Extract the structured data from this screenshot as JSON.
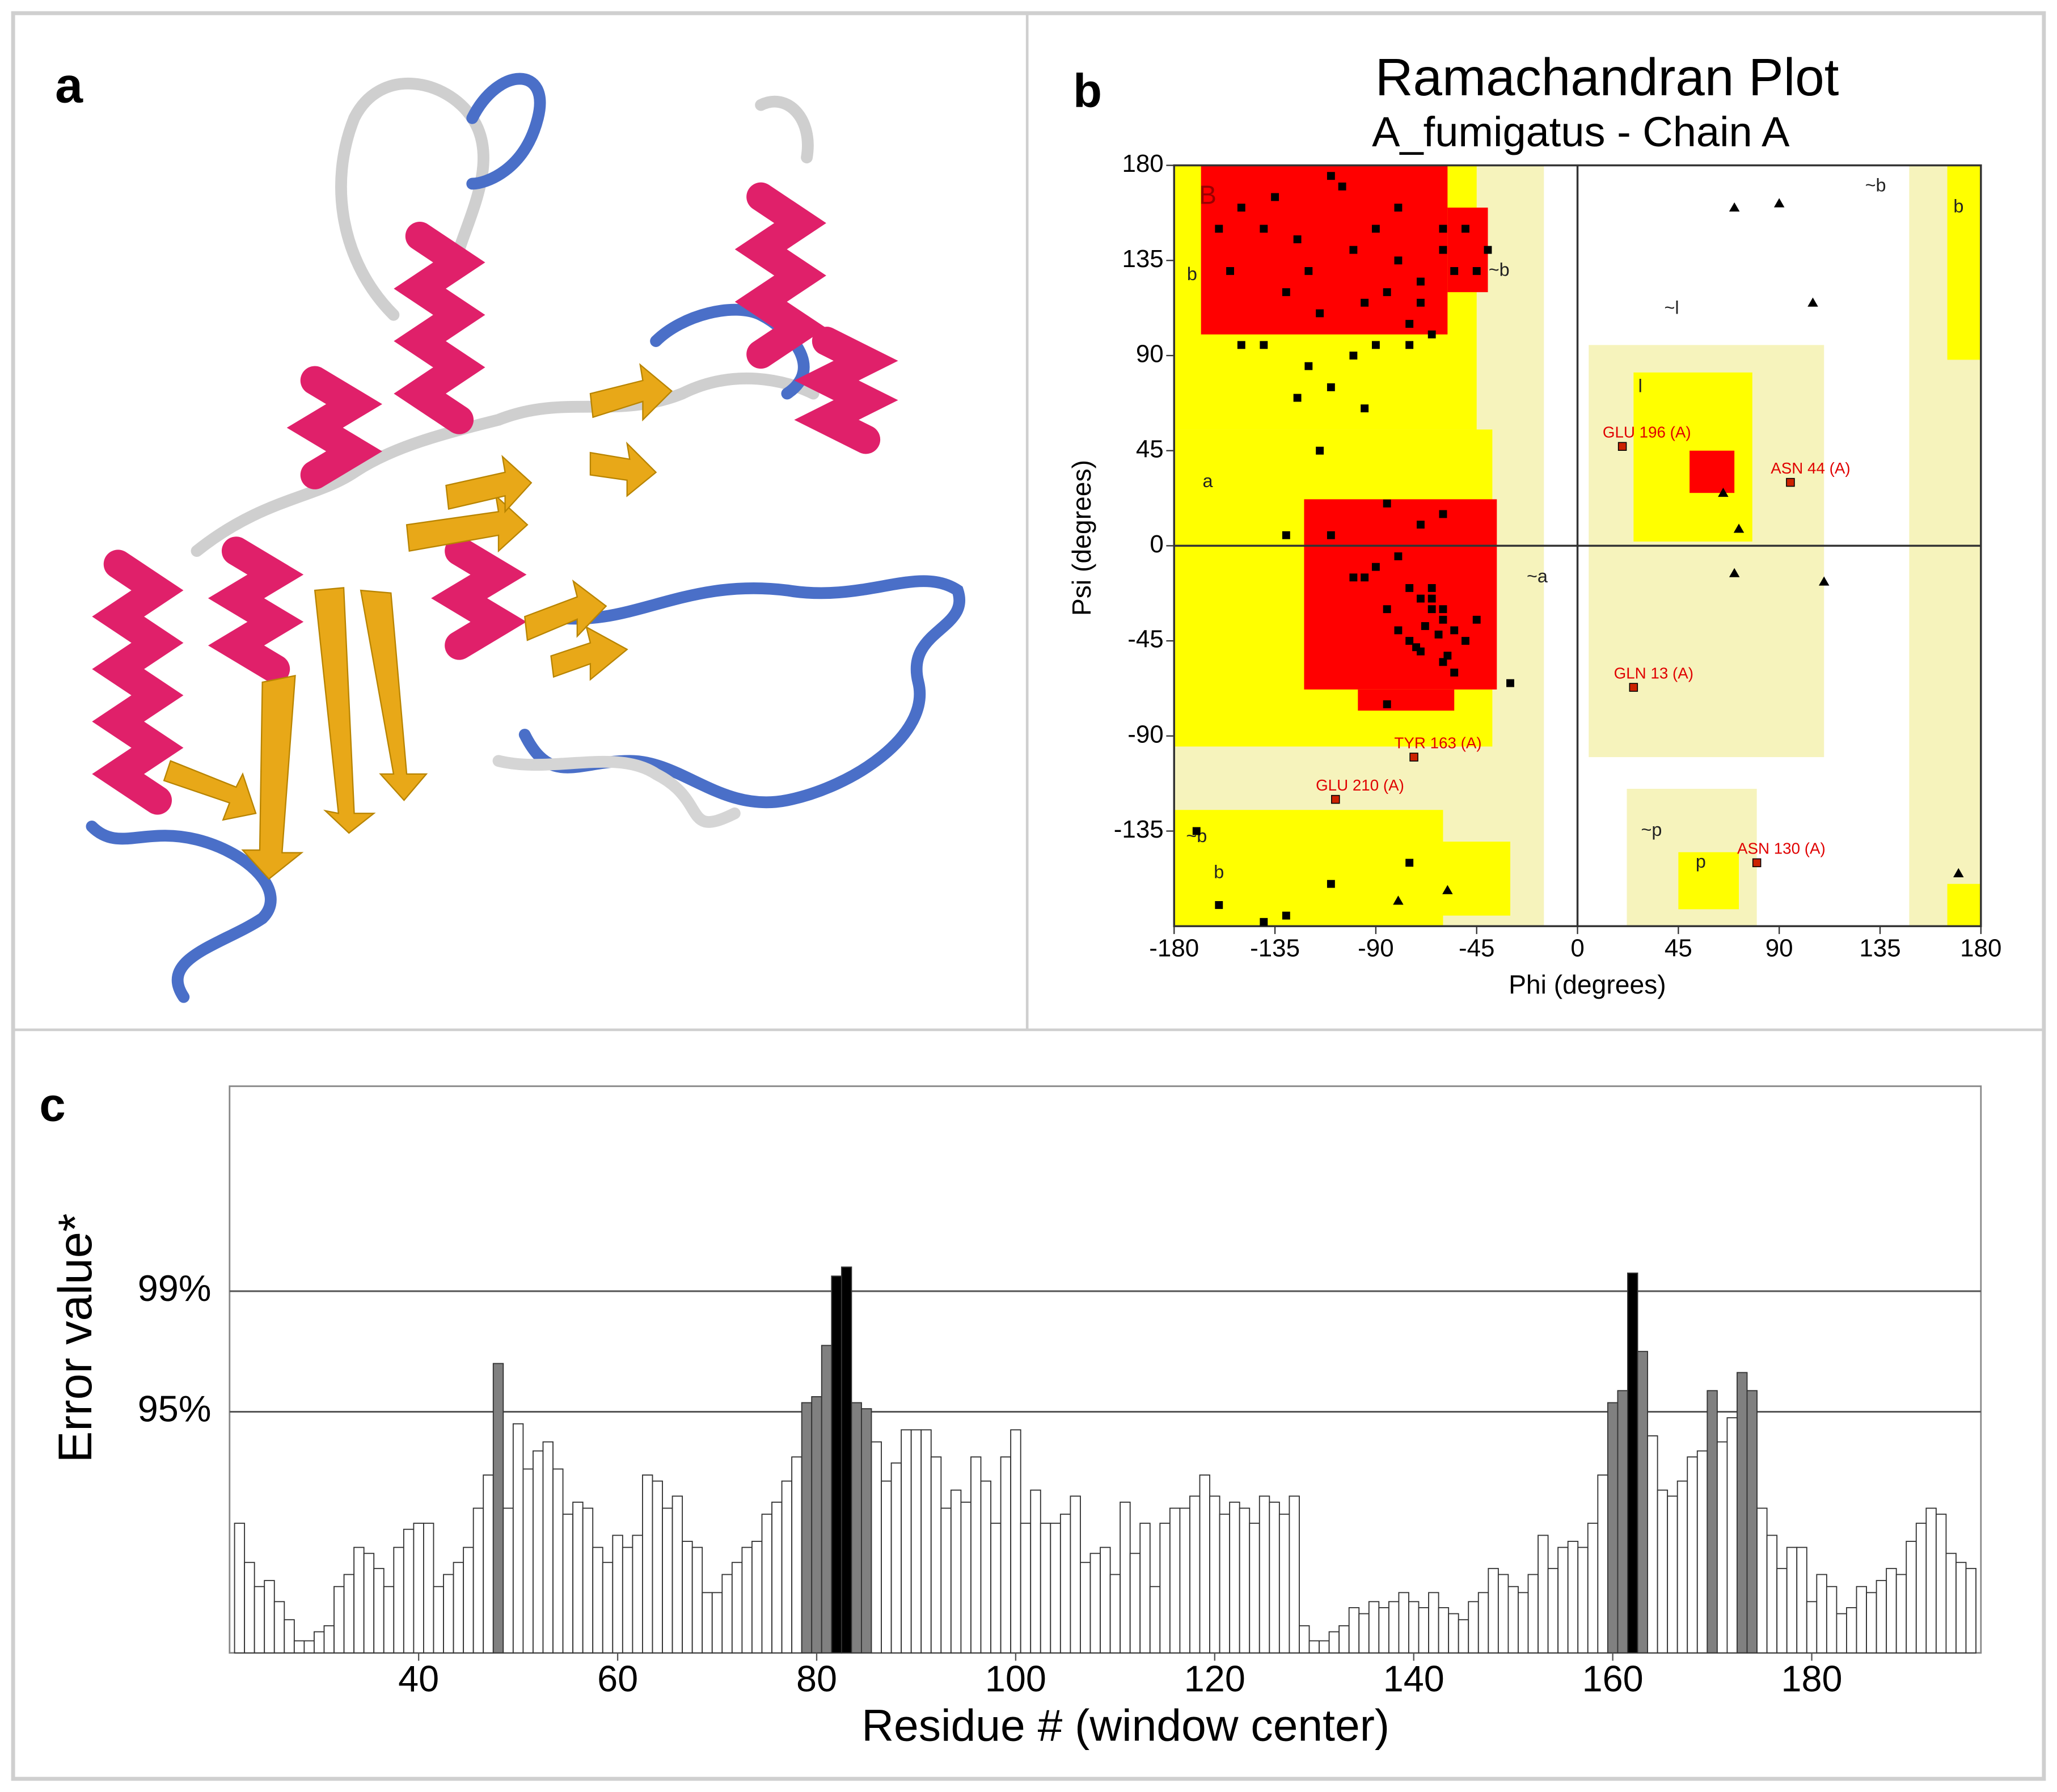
{
  "panels": {
    "a": "a",
    "b": "b",
    "c": "c"
  },
  "chart_data": [
    {
      "type": "scatter",
      "title": "Ramachandran Plot",
      "subtitle": "A_fumigatus - Chain A",
      "x_label": "Phi (degrees)",
      "y_label": "Psi (degrees)",
      "xlim": [
        -180,
        180
      ],
      "ylim": [
        -180,
        180
      ],
      "xticks": [
        -180,
        -135,
        -90,
        -45,
        0,
        45,
        90,
        135,
        180
      ],
      "yticks": [
        -135,
        -90,
        -45,
        0,
        45,
        90,
        135,
        180
      ],
      "region_labels": [
        "B",
        "b",
        "~b",
        "a",
        "~a",
        "l",
        "~l",
        "p",
        "~p",
        "~b",
        "b",
        "~b",
        "b"
      ],
      "series": [
        {
          "marker": "square",
          "color": "#000000",
          "x": [
            -110,
            -150,
            -140,
            -125,
            -120,
            -100,
            -90,
            -80,
            -70,
            -60,
            -55,
            -130,
            -115,
            -95,
            -85,
            -75,
            -65,
            -100,
            -140,
            -160,
            -135,
            -105,
            -80,
            -60,
            -50,
            -45,
            -70,
            -90,
            -120,
            -155,
            -110,
            -125,
            -40,
            -75,
            -95,
            -115,
            -150,
            -85,
            -60,
            -130,
            -70,
            -80,
            -90,
            -75,
            -70,
            -65,
            -60,
            -55,
            -50,
            -85,
            -95,
            -65,
            -70,
            -60,
            -75,
            -55,
            -45,
            -80,
            -65,
            -60,
            -62,
            -68,
            -72,
            -58,
            -100,
            -110,
            -30,
            -85,
            -170,
            -110,
            -75,
            -160,
            -140,
            -130
          ],
          "y": [
            175,
            160,
            150,
            145,
            130,
            140,
            150,
            135,
            125,
            140,
            130,
            120,
            110,
            115,
            120,
            105,
            100,
            90,
            95,
            150,
            165,
            170,
            160,
            150,
            150,
            130,
            115,
            95,
            85,
            130,
            75,
            70,
            140,
            95,
            65,
            45,
            95,
            20,
            15,
            5,
            10,
            -5,
            -10,
            -20,
            -25,
            -30,
            -35,
            -40,
            -45,
            -30,
            -15,
            -20,
            -50,
            -55,
            -45,
            -60,
            -35,
            -40,
            -25,
            -30,
            -42,
            -38,
            -48,
            -52,
            -15,
            5,
            -65,
            -75,
            -135,
            -160,
            -150,
            -170,
            -178,
            -175
          ]
        },
        {
          "marker": "triangle",
          "color": "#000000",
          "x": [
            70,
            90,
            105,
            65,
            72,
            70,
            110,
            170,
            -80,
            -58
          ],
          "y": [
            160,
            162,
            115,
            25,
            8,
            -13,
            -17,
            -155,
            -168,
            -163
          ]
        },
        {
          "marker": "square",
          "color": "#cc2200",
          "x": [
            20,
            95,
            25,
            -73,
            -108,
            80
          ],
          "y": [
            47,
            30,
            -67,
            -100,
            -120,
            -150
          ],
          "labels": [
            "GLU 196 (A)",
            "ASN 44 (A)",
            "GLN 13 (A)",
            "TYR 163 (A)",
            "GLU 210 (A)",
            "ASN 130 (A)"
          ]
        }
      ]
    },
    {
      "type": "bar",
      "x_label": "Residue # (window center)",
      "y_label": "Error value*",
      "xlim": [
        21,
        197
      ],
      "ylim": [
        87,
        105.8
      ],
      "xticks": [
        40,
        60,
        80,
        100,
        120,
        140,
        160,
        180
      ],
      "yticks": [
        {
          "value": 95,
          "label": "95%"
        },
        {
          "value": 99,
          "label": "99%"
        }
      ],
      "grid": true,
      "bar_colors": [
        "#ffffff",
        "#808080",
        "#000000"
      ],
      "x": [
        22,
        23,
        24,
        25,
        26,
        27,
        28,
        29,
        30,
        31,
        32,
        33,
        34,
        35,
        36,
        37,
        38,
        39,
        40,
        41,
        42,
        43,
        44,
        45,
        46,
        47,
        48,
        49,
        50,
        51,
        52,
        53,
        54,
        55,
        56,
        57,
        58,
        59,
        60,
        61,
        62,
        63,
        64,
        65,
        66,
        67,
        68,
        69,
        70,
        71,
        72,
        73,
        74,
        75,
        76,
        77,
        78,
        79,
        80,
        81,
        82,
        83,
        84,
        85,
        86,
        87,
        88,
        89,
        90,
        91,
        92,
        93,
        94,
        95,
        96,
        97,
        98,
        99,
        100,
        101,
        102,
        103,
        104,
        105,
        106,
        107,
        108,
        109,
        110,
        111,
        112,
        113,
        114,
        115,
        116,
        117,
        118,
        119,
        120,
        121,
        122,
        123,
        124,
        125,
        126,
        127,
        128,
        129,
        130,
        131,
        132,
        133,
        134,
        135,
        136,
        137,
        138,
        139,
        140,
        141,
        142,
        143,
        144,
        145,
        146,
        147,
        148,
        149,
        150,
        151,
        152,
        153,
        154,
        155,
        156,
        157,
        158,
        159,
        160,
        161,
        162,
        163,
        164,
        165,
        166,
        167,
        168,
        169,
        170,
        171,
        172,
        173,
        174,
        175,
        176,
        177,
        178,
        179,
        180,
        181,
        182,
        183,
        184,
        185,
        186,
        187,
        188,
        189,
        190,
        191,
        192,
        193,
        194,
        195,
        196
      ],
      "values": [
        91.3,
        90.0,
        89.2,
        89.4,
        88.7,
        88.1,
        87.4,
        87.4,
        87.7,
        87.9,
        89.2,
        89.6,
        90.5,
        90.3,
        89.8,
        89.2,
        90.5,
        91.1,
        91.3,
        91.3,
        89.2,
        89.6,
        90.0,
        90.5,
        91.8,
        92.9,
        96.6,
        91.8,
        94.6,
        93.1,
        93.7,
        94.0,
        93.1,
        91.6,
        92.0,
        91.8,
        90.5,
        90.0,
        90.9,
        90.5,
        90.9,
        92.9,
        92.7,
        91.8,
        92.2,
        90.7,
        90.5,
        89.0,
        89.0,
        89.6,
        90.0,
        90.5,
        90.7,
        91.6,
        92.0,
        92.7,
        93.5,
        95.3,
        95.5,
        97.2,
        99.5,
        99.8,
        95.3,
        95.1,
        94.0,
        92.7,
        93.3,
        94.4,
        94.4,
        94.4,
        93.5,
        91.8,
        92.4,
        92.0,
        93.5,
        92.7,
        91.3,
        93.5,
        94.4,
        91.3,
        92.4,
        91.3,
        91.3,
        91.6,
        92.2,
        90.0,
        90.3,
        90.5,
        89.6,
        92.0,
        90.3,
        91.3,
        89.2,
        91.3,
        91.8,
        91.8,
        92.2,
        92.9,
        92.2,
        91.6,
        92.0,
        91.8,
        91.3,
        92.2,
        92.0,
        91.6,
        92.2,
        87.9,
        87.4,
        87.4,
        87.7,
        87.9,
        88.5,
        88.3,
        88.7,
        88.5,
        88.7,
        89.0,
        88.7,
        88.5,
        89.0,
        88.5,
        88.3,
        88.1,
        88.7,
        89.0,
        89.8,
        89.6,
        89.2,
        89.0,
        89.6,
        90.9,
        89.8,
        90.5,
        90.7,
        90.5,
        91.3,
        92.9,
        95.3,
        95.7,
        99.6,
        97.0,
        94.2,
        92.4,
        92.2,
        92.7,
        93.5,
        93.7,
        95.7,
        94.0,
        94.8,
        96.3,
        95.7,
        91.8,
        90.9,
        89.8,
        90.5,
        90.5,
        88.7,
        89.6,
        89.2,
        88.3,
        88.5,
        89.2,
        89.0,
        89.4,
        89.8,
        89.6,
        90.7,
        91.3,
        91.8,
        91.6,
        90.3,
        90.0,
        89.8
      ]
    }
  ]
}
